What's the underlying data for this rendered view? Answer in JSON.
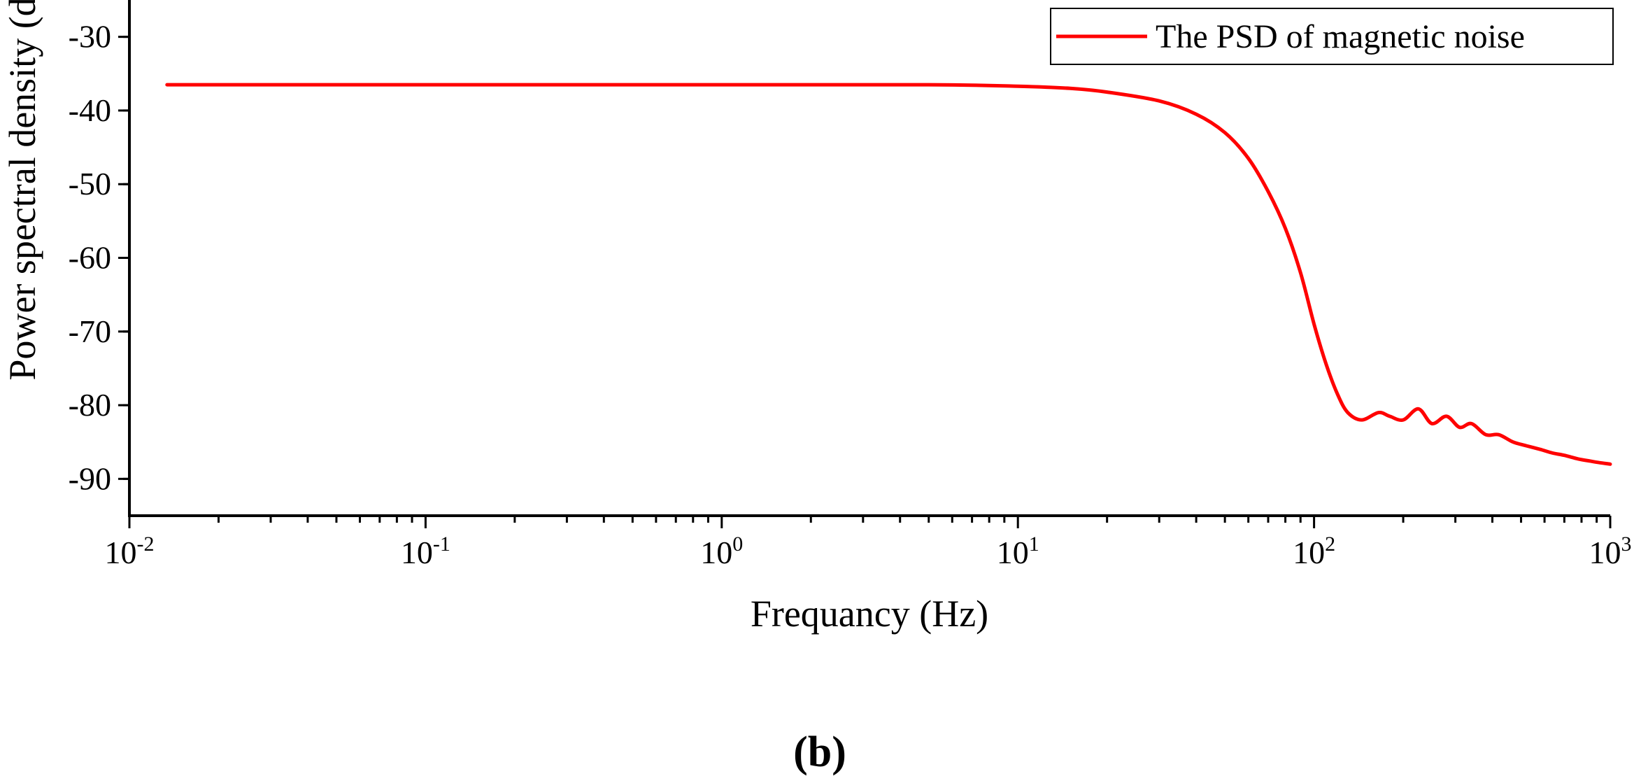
{
  "chart_data": {
    "type": "line",
    "title": "",
    "xlabel": "Frequancy (Hz)",
    "ylabel": "Power spectral density (dB)",
    "x_scale": "log",
    "xlim": [
      0.01,
      1000
    ],
    "ylim": [
      -95,
      -25
    ],
    "x_ticks": [
      {
        "base": "10",
        "exp": "-2",
        "value": 0.01
      },
      {
        "base": "10",
        "exp": "-1",
        "value": 0.1
      },
      {
        "base": "10",
        "exp": "0",
        "value": 1
      },
      {
        "base": "10",
        "exp": "1",
        "value": 10
      },
      {
        "base": "10",
        "exp": "2",
        "value": 100
      },
      {
        "base": "10",
        "exp": "3",
        "value": 1000
      }
    ],
    "y_ticks": [
      {
        "label": "-30",
        "value": -30
      },
      {
        "label": "-40",
        "value": -40
      },
      {
        "label": "-50",
        "value": -50
      },
      {
        "label": "-60",
        "value": -60
      },
      {
        "label": "-70",
        "value": -70
      },
      {
        "label": "-80",
        "value": -80
      },
      {
        "label": "-90",
        "value": -90
      }
    ],
    "grid": false,
    "legend": {
      "position": "top-right"
    },
    "series": [
      {
        "name": "The PSD of magnetic noise",
        "color": "#ff0000",
        "x": [
          0.0134,
          0.1,
          1,
          5,
          10,
          15,
          20,
          30,
          40,
          50,
          60,
          70,
          80,
          90,
          100,
          110,
          120,
          130,
          145,
          165,
          180,
          200,
          225,
          250,
          280,
          310,
          340,
          380,
          420,
          470,
          520,
          580,
          640,
          700,
          780,
          860,
          920,
          1000
        ],
        "y": [
          -36.5,
          -36.5,
          -36.5,
          -36.5,
          -36.7,
          -37.0,
          -37.5,
          -38.7,
          -40.5,
          -43.0,
          -46.5,
          -51.0,
          -56.0,
          -62.0,
          -69.0,
          -74.5,
          -78.5,
          -81.0,
          -82.0,
          -81.0,
          -81.5,
          -82.0,
          -80.5,
          -82.5,
          -81.5,
          -83.0,
          -82.5,
          -84.0,
          -84.0,
          -85.0,
          -85.5,
          -86.0,
          -86.5,
          -86.8,
          -87.3,
          -87.6,
          -87.8,
          -88.0
        ]
      }
    ]
  },
  "panel_label": "(b)"
}
